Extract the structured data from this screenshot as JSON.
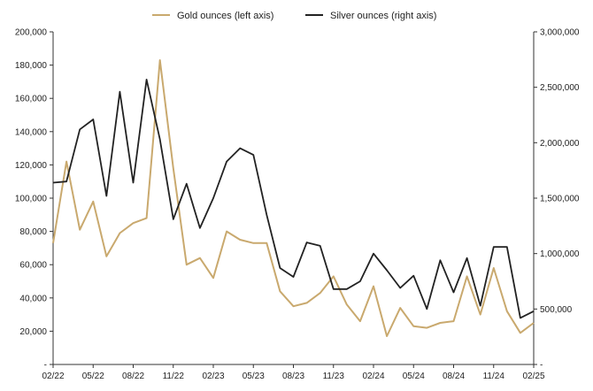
{
  "chart_data": {
    "type": "line",
    "title": "",
    "x": [
      "02/22",
      "03/22",
      "04/22",
      "05/22",
      "06/22",
      "07/22",
      "08/22",
      "09/22",
      "10/22",
      "11/22",
      "12/22",
      "01/23",
      "02/23",
      "03/23",
      "04/23",
      "05/23",
      "06/23",
      "07/23",
      "08/23",
      "09/23",
      "10/23",
      "11/23",
      "12/23",
      "01/24",
      "02/24",
      "03/24",
      "04/24",
      "05/24",
      "06/24",
      "07/24",
      "08/24",
      "09/24",
      "10/24",
      "11/24",
      "12/24",
      "01/25",
      "02/25"
    ],
    "x_tick_labels": [
      "02/22",
      "05/22",
      "08/22",
      "11/22",
      "02/23",
      "05/23",
      "08/23",
      "11/23",
      "02/24",
      "05/24",
      "08/24",
      "11/24",
      "02/25"
    ],
    "series": [
      {
        "name": "Gold ounces (left axis)",
        "axis": "left",
        "color": "#c9a96e",
        "values": [
          73000,
          122000,
          81000,
          98000,
          65000,
          79000,
          85000,
          88000,
          183000,
          118000,
          60000,
          64000,
          52000,
          80000,
          75000,
          73000,
          73000,
          44000,
          35000,
          37000,
          43000,
          53000,
          36000,
          26000,
          47000,
          17000,
          34000,
          23000,
          22000,
          25000,
          26000,
          53000,
          30000,
          58000,
          32000,
          19000,
          25000
        ]
      },
      {
        "name": "Silver ounces (right axis)",
        "axis": "right",
        "color": "#222222",
        "values": [
          1640000,
          1650000,
          2120000,
          2210000,
          1520000,
          2460000,
          1640000,
          2570000,
          2030000,
          1310000,
          1630000,
          1230000,
          1500000,
          1830000,
          1950000,
          1890000,
          1350000,
          870000,
          790000,
          1100000,
          1070000,
          680000,
          680000,
          750000,
          1000000,
          850000,
          690000,
          800000,
          500000,
          940000,
          650000,
          960000,
          530000,
          1060000,
          1060000,
          420000,
          480000
        ]
      }
    ],
    "y_left": {
      "lim": [
        0,
        200000
      ],
      "ticks": [
        "-",
        "20,000",
        "40,000",
        "60,000",
        "80,000",
        "100,000",
        "120,000",
        "140,000",
        "160,000",
        "180,000",
        "200,000"
      ]
    },
    "y_right": {
      "lim": [
        0,
        3000000
      ],
      "ticks": [
        "-",
        "500,000",
        "1,000,000",
        "1,500,000",
        "2,000,000",
        "2,500,000",
        "3,000,000"
      ]
    },
    "grid": false,
    "legend_position": "top-center"
  }
}
